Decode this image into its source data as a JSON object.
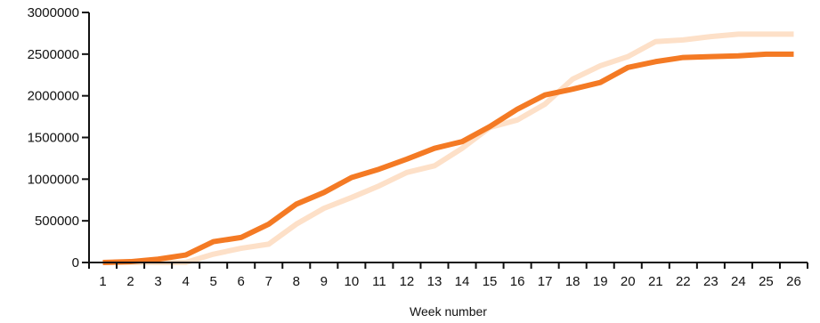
{
  "chart_data": {
    "type": "line",
    "title": "",
    "xlabel": "Week number",
    "ylabel": "",
    "x": [
      "1",
      "2",
      "3",
      "4",
      "5",
      "6",
      "7",
      "8",
      "9",
      "10",
      "11",
      "12",
      "13",
      "14",
      "15",
      "16",
      "17",
      "18",
      "19",
      "20",
      "21",
      "22",
      "23",
      "24",
      "25",
      "26"
    ],
    "ylim": [
      0,
      3000000
    ],
    "yticks": [
      "0",
      "500000",
      "1000000",
      "1500000",
      "2000000",
      "2500000",
      "3000000"
    ],
    "grid": false,
    "legend": "none",
    "series": [
      {
        "color": "#f47a24",
        "values": [
          0,
          10000,
          40000,
          90000,
          250000,
          300000,
          460000,
          700000,
          840000,
          1020000,
          1120000,
          1240000,
          1370000,
          1450000,
          1630000,
          1840000,
          2010000,
          2080000,
          2160000,
          2340000,
          2410000,
          2460000,
          2470000,
          2480000,
          2500000,
          2500000
        ]
      },
      {
        "color": "#fde0c8",
        "values": [
          0,
          0,
          0,
          0,
          100000,
          170000,
          220000,
          460000,
          650000,
          780000,
          920000,
          1080000,
          1160000,
          1370000,
          1620000,
          1710000,
          1900000,
          2200000,
          2360000,
          2470000,
          2650000,
          2670000,
          2710000,
          2740000,
          2740000,
          2740000
        ]
      }
    ]
  }
}
